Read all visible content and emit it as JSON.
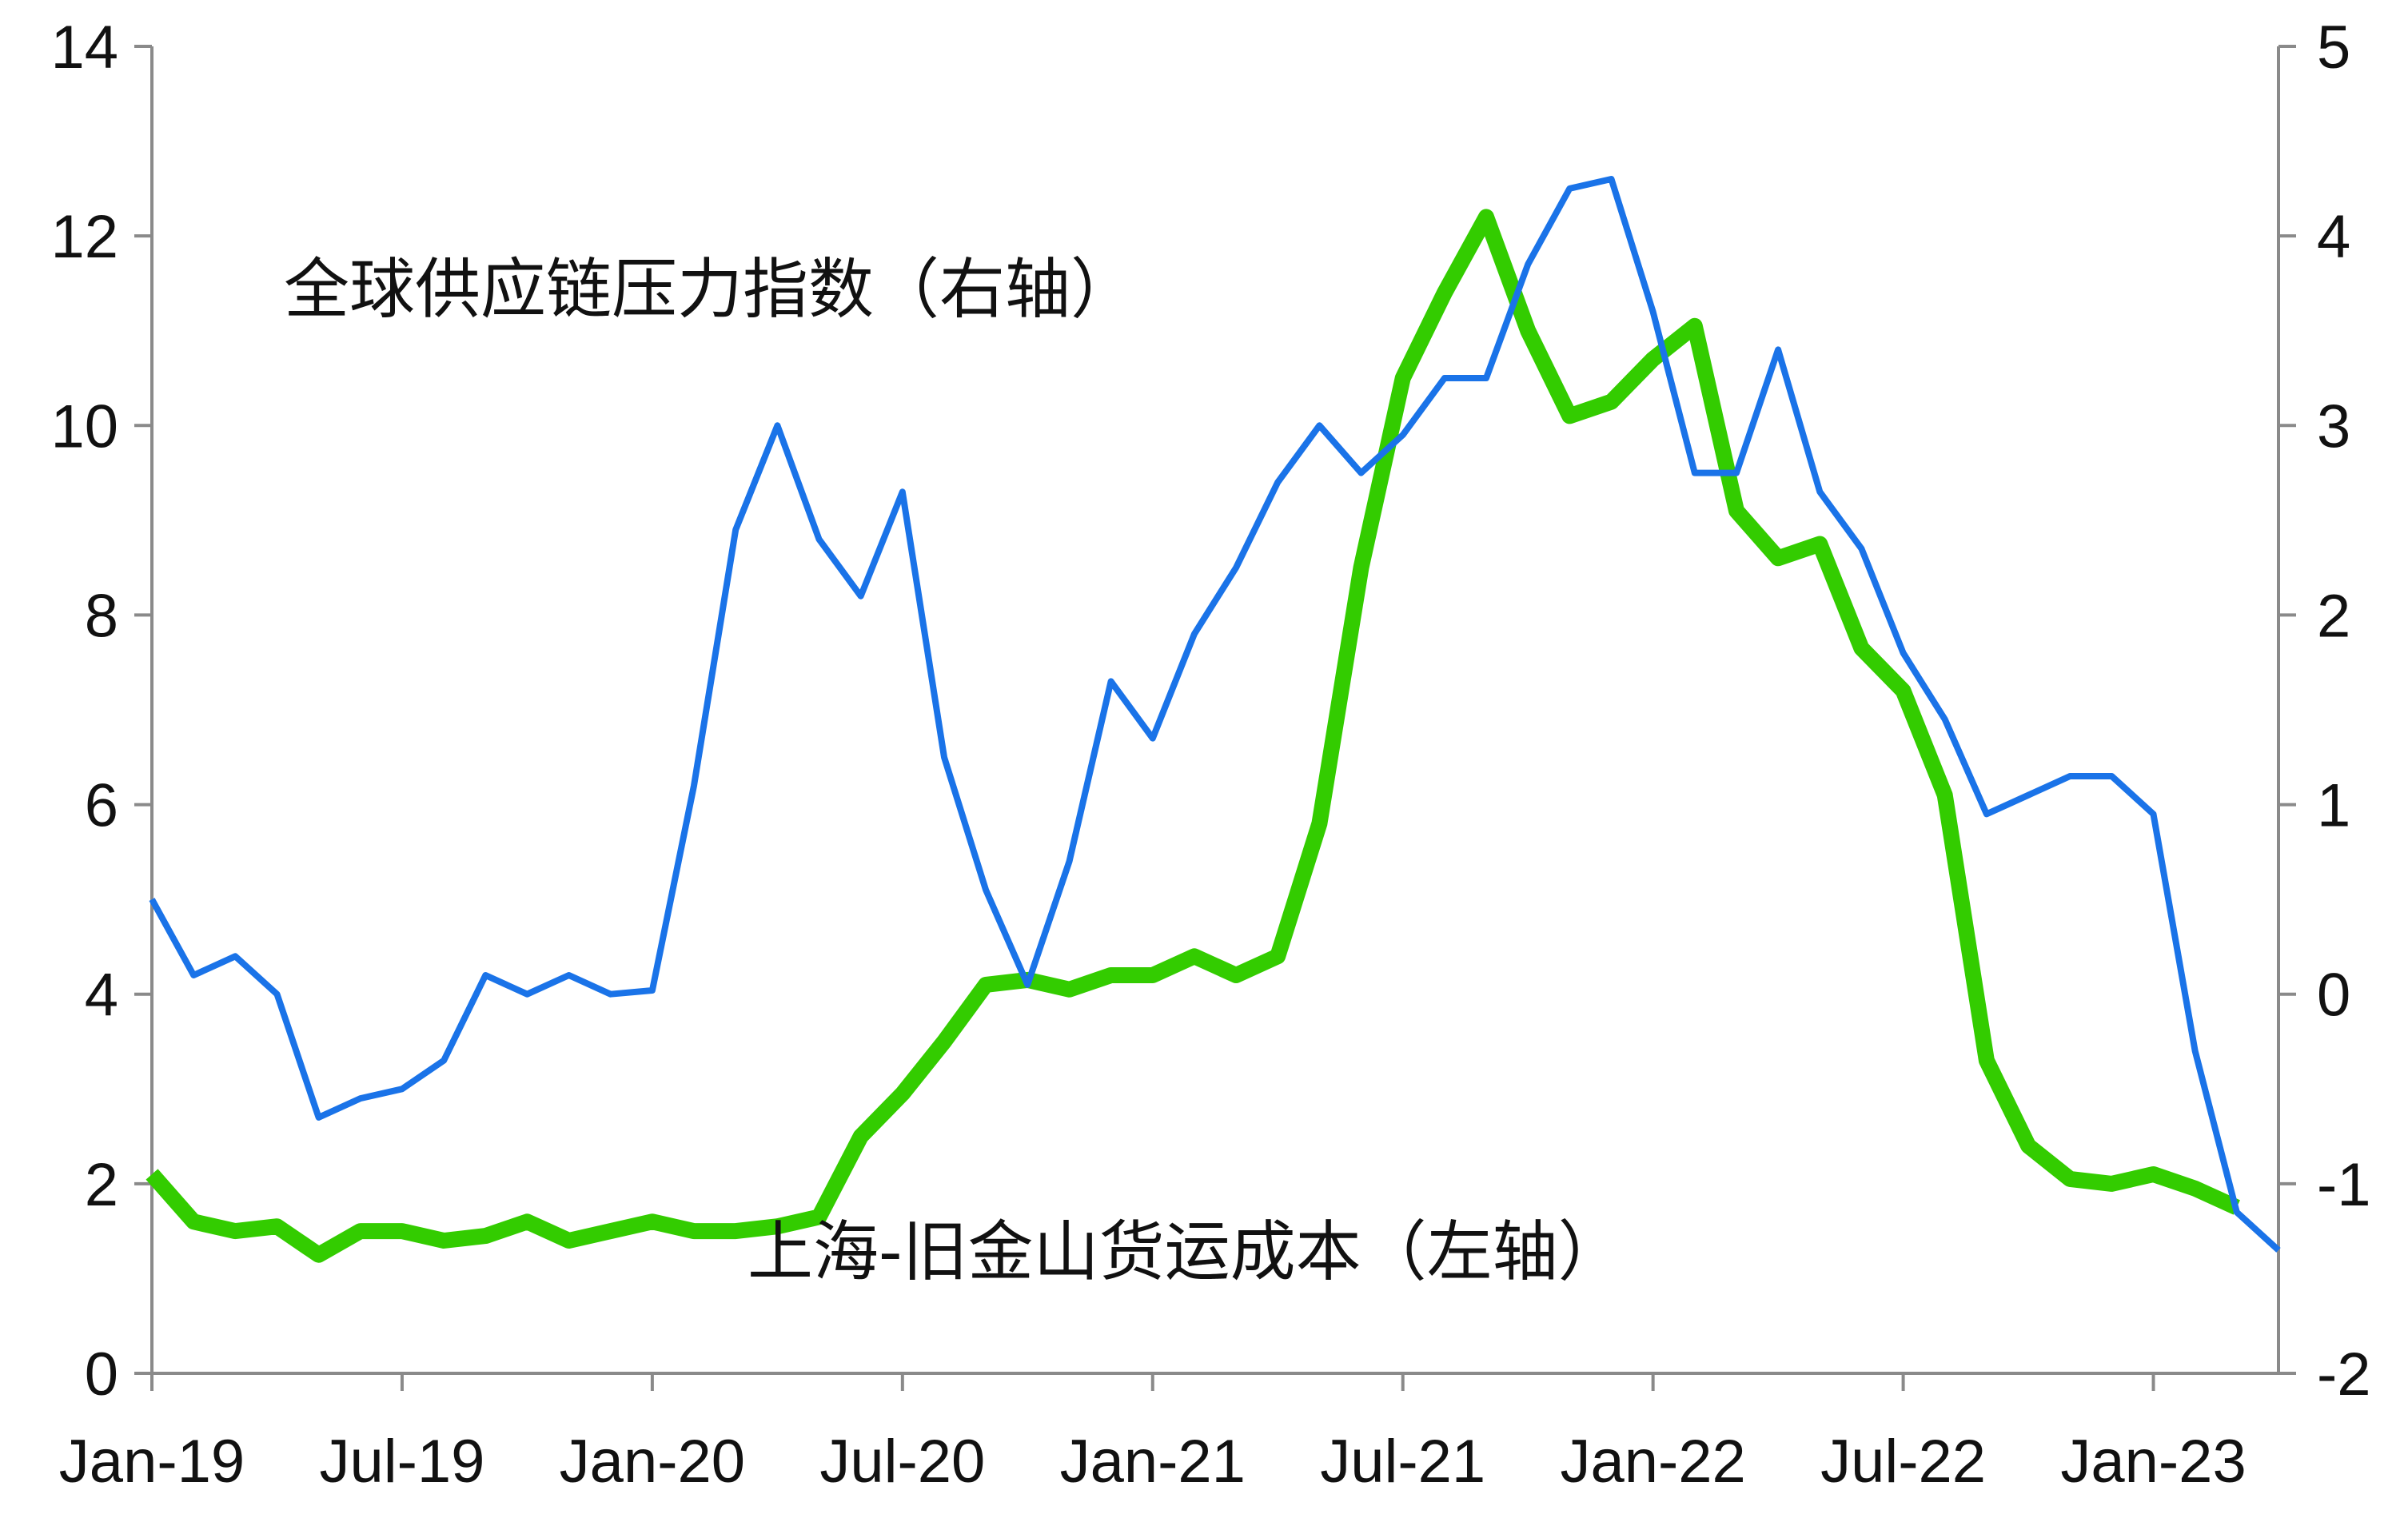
{
  "chart_data": {
    "type": "line",
    "title": "",
    "x": [
      "2019-01",
      "2019-02",
      "2019-03",
      "2019-04",
      "2019-05",
      "2019-06",
      "2019-07",
      "2019-08",
      "2019-09",
      "2019-10",
      "2019-11",
      "2019-12",
      "2020-01",
      "2020-02",
      "2020-03",
      "2020-04",
      "2020-05",
      "2020-06",
      "2020-07",
      "2020-08",
      "2020-09",
      "2020-10",
      "2020-11",
      "2020-12",
      "2021-01",
      "2021-02",
      "2021-03",
      "2021-04",
      "2021-05",
      "2021-06",
      "2021-07",
      "2021-08",
      "2021-09",
      "2021-10",
      "2021-11",
      "2021-12",
      "2022-01",
      "2022-02",
      "2022-03",
      "2022-04",
      "2022-05",
      "2022-06",
      "2022-07",
      "2022-08",
      "2022-09",
      "2022-10",
      "2022-11",
      "2022-12",
      "2023-01",
      "2023-02",
      "2023-03",
      "2023-04"
    ],
    "x_ticks": [
      "Jan-19",
      "Jul-19",
      "Jan-20",
      "Jul-20",
      "Jan-21",
      "Jul-21",
      "Jan-22",
      "Jul-22",
      "Jan-23"
    ],
    "y_left": {
      "ylim": [
        0,
        14
      ],
      "ticks": [
        "0",
        "2",
        "4",
        "6",
        "8",
        "10",
        "12",
        "14"
      ]
    },
    "y_right": {
      "ylim": [
        -2,
        5
      ],
      "ticks": [
        "-2",
        "-1",
        "0",
        "1",
        "2",
        "3",
        "4",
        "5"
      ]
    },
    "grid": false,
    "series": [
      {
        "name": "上海-旧金山货运成本（左轴）",
        "axis": "left",
        "color": "#33cc00",
        "values": [
          2.1,
          1.6,
          1.5,
          1.55,
          1.25,
          1.5,
          1.5,
          1.4,
          1.45,
          1.6,
          1.4,
          1.5,
          1.6,
          1.5,
          1.5,
          1.55,
          1.65,
          2.5,
          2.95,
          3.5,
          4.1,
          4.15,
          4.05,
          4.2,
          4.2,
          4.4,
          4.2,
          4.4,
          5.8,
          8.5,
          10.5,
          11.4,
          12.2,
          11.0,
          10.1,
          10.25,
          10.7,
          11.05,
          9.1,
          8.6,
          8.75,
          7.65,
          7.2,
          6.1,
          3.3,
          2.4,
          2.05,
          2.0,
          2.1,
          1.95,
          1.75,
          null
        ]
      },
      {
        "name": "全球供应链压力指数（右轴）",
        "axis": "right",
        "color": "#1a73e8",
        "values": [
          0.5,
          0.1,
          0.2,
          0.0,
          -0.65,
          -0.55,
          -0.5,
          -0.35,
          0.1,
          0.0,
          0.1,
          0.0,
          0.02,
          1.1,
          2.45,
          3.0,
          2.4,
          2.1,
          2.65,
          1.25,
          0.55,
          0.05,
          0.7,
          1.65,
          1.35,
          1.9,
          2.25,
          2.7,
          3.0,
          2.75,
          2.95,
          3.25,
          3.25,
          3.85,
          4.25,
          4.3,
          3.6,
          2.75,
          2.75,
          3.4,
          2.65,
          2.35,
          1.8,
          1.45,
          0.95,
          1.05,
          1.15,
          1.15,
          0.95,
          -0.3,
          -1.15,
          -1.35
        ]
      }
    ],
    "annotations": [
      {
        "text": "全球供应链压力指数（右轴）",
        "series": 1
      },
      {
        "text": "上海-旧金山货运成本（左轴）",
        "series": 0
      }
    ]
  }
}
